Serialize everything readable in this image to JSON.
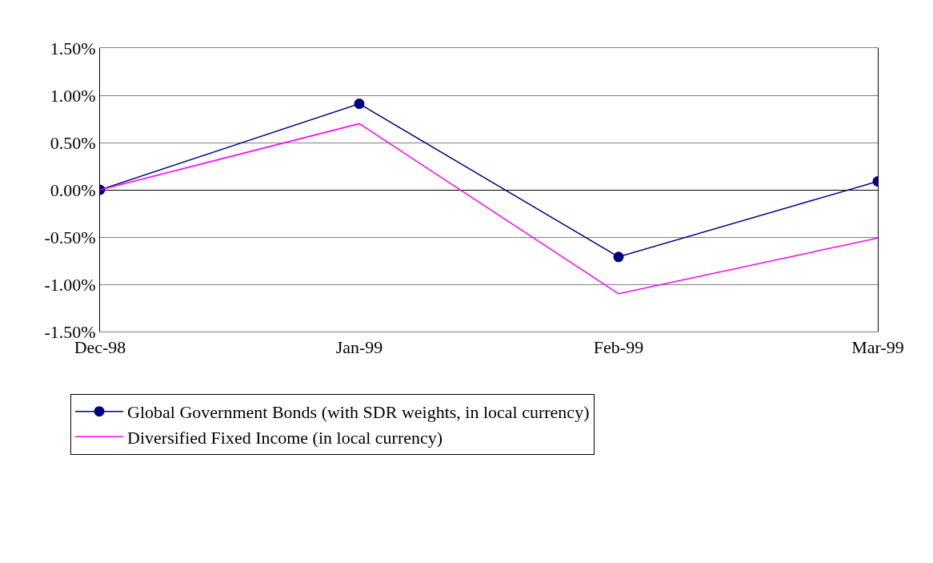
{
  "chart_data": {
    "type": "line",
    "categories": [
      "Dec-98",
      "Jan-99",
      "Feb-99",
      "Mar-99"
    ],
    "series": [
      {
        "name": "Global Government Bonds (with SDR weights, in local currency)",
        "color": "#000080",
        "marker": "circle",
        "values": [
          0,
          0.91,
          -0.71,
          0.09
        ]
      },
      {
        "name": "Diversified Fixed Income (in local currency)",
        "color": "#ff00ff",
        "marker": "none",
        "values": [
          0,
          0.7,
          -1.1,
          -0.51
        ]
      }
    ],
    "ylim": [
      -1.5,
      1.5
    ],
    "yticks": [
      {
        "value": -1.5,
        "label": "-1.50%"
      },
      {
        "value": -1.0,
        "label": "-1.00%"
      },
      {
        "value": -0.5,
        "label": "-0.50%"
      },
      {
        "value": 0,
        "label": "0.00%"
      },
      {
        "value": 0.5,
        "label": "0.50%"
      },
      {
        "value": 1.0,
        "label": "1.00%"
      },
      {
        "value": 1.5,
        "label": "1.50%"
      }
    ],
    "grid": "y",
    "legend": "bottom",
    "line_style": "solid"
  }
}
